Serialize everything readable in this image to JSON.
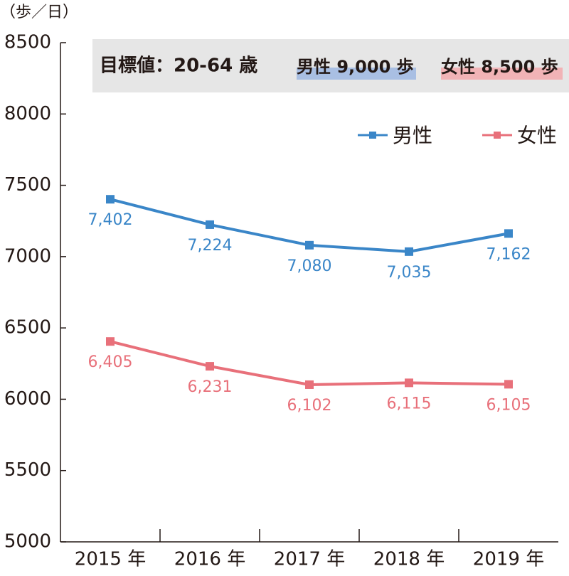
{
  "chart_data": {
    "type": "line",
    "y_label": "（歩／日）",
    "annotation": {
      "label": "目標値：20-64 歳",
      "male": "男性 9,000 歩",
      "female": "女性 8,500 歩"
    },
    "categories": [
      "2015 年",
      "2016 年",
      "2017 年",
      "2018 年",
      "2019 年"
    ],
    "series": [
      {
        "name": "男性",
        "color": "#3a86c8",
        "values": [
          7402,
          7224,
          7080,
          7035,
          7162
        ],
        "value_labels": [
          "7,402",
          "7,224",
          "7,080",
          "7,035",
          "7,162"
        ]
      },
      {
        "name": "女性",
        "color": "#e8707a",
        "values": [
          6405,
          6231,
          6102,
          6115,
          6105
        ],
        "value_labels": [
          "6,405",
          "6,231",
          "6,102",
          "6,115",
          "6,105"
        ]
      }
    ],
    "ylim": [
      5000,
      8500
    ],
    "yticks": [
      5000,
      5500,
      6000,
      6500,
      7000,
      7500,
      8000,
      8500
    ],
    "grid": false
  }
}
